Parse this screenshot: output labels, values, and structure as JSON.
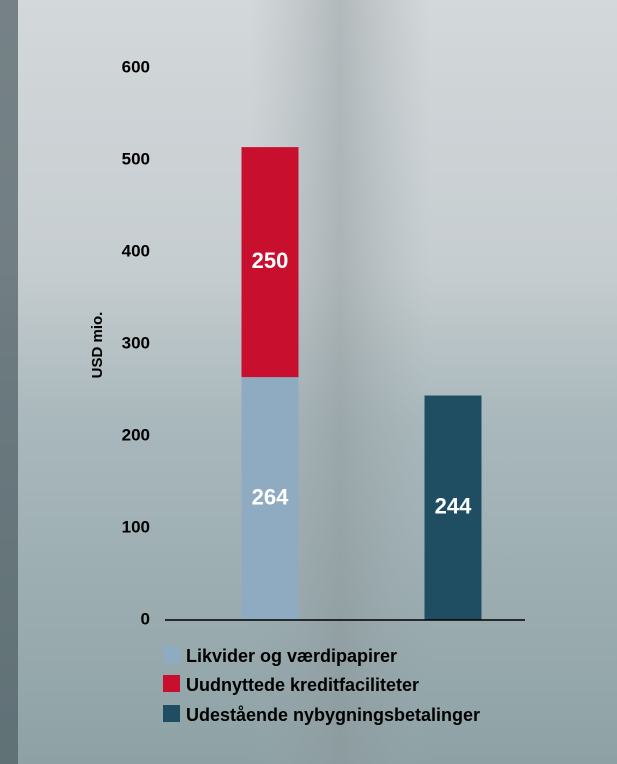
{
  "chart_data": {
    "type": "stacked-bar",
    "y_axis_label": "USD mio.",
    "categories": [
      null,
      null
    ],
    "series": [
      {
        "name": "Likvider og værdipapirer",
        "color": "#8eabc2",
        "values": [
          264,
          null
        ]
      },
      {
        "name": "Uudnyttede kreditfaciliteter",
        "color": "#c8102e",
        "values": [
          250,
          null
        ]
      },
      {
        "name": "Udestående nybygningsbetalinger",
        "color": "#1f4e63",
        "values": [
          null,
          244
        ]
      }
    ],
    "ylim": [
      0,
      600
    ],
    "yticks": [
      0,
      100,
      200,
      300,
      400,
      500,
      600
    ],
    "legend": "bottom"
  }
}
